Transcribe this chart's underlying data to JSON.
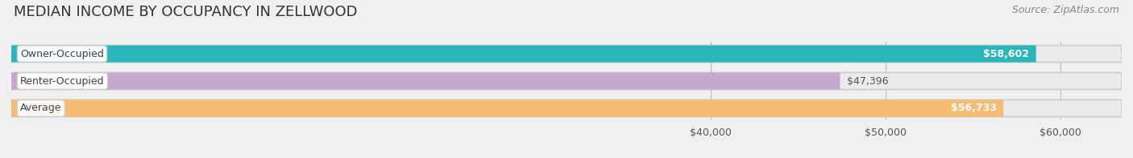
{
  "title": "MEDIAN INCOME BY OCCUPANCY IN ZELLWOOD",
  "source": "Source: ZipAtlas.com",
  "categories": [
    "Owner-Occupied",
    "Renter-Occupied",
    "Average"
  ],
  "values": [
    58602,
    47396,
    56733
  ],
  "bar_colors": [
    "#2ab5bb",
    "#c5a8cc",
    "#f6bc72"
  ],
  "value_labels": [
    "$58,602",
    "$47,396",
    "$56,733"
  ],
  "value_inside": [
    true,
    false,
    true
  ],
  "xlim_min": 0,
  "xlim_max": 63500,
  "xticks": [
    40000,
    50000,
    60000
  ],
  "xtick_labels": [
    "$40,000",
    "$50,000",
    "$60,000"
  ],
  "bar_height": 0.62,
  "background_color": "#f0f0f0",
  "bar_bg_color": "#e0e0e0",
  "title_fontsize": 13,
  "source_fontsize": 9,
  "label_fontsize": 9,
  "value_fontsize": 9
}
